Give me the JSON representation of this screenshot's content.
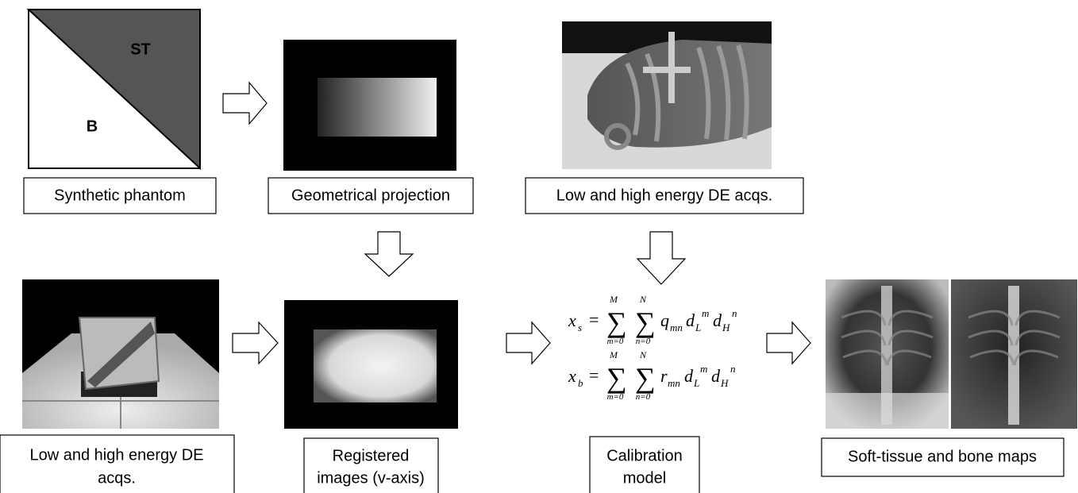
{
  "phantom": {
    "label_st": "ST",
    "label_b": "B",
    "caption": "Synthetic phantom"
  },
  "projection": {
    "caption": "Geometrical projection"
  },
  "acquisition_top": {
    "caption": "Low and high energy DE acqs."
  },
  "acquisition_bottom": {
    "caption_lines": [
      "Low and high energy DE",
      "acqs."
    ]
  },
  "registered": {
    "caption_lines": [
      "Registered",
      "images (v-axis)"
    ]
  },
  "calibration": {
    "caption_lines": [
      "Calibration",
      "model"
    ],
    "formulas": [
      {
        "lhs": "x",
        "lhs_sub": "s",
        "eq": "=",
        "sigma": "∑",
        "upper1": "M",
        "lower1": "m=0",
        "upper2": "N",
        "lower2": "n=0",
        "coef": "q",
        "coef_sub": "mn",
        "d1": "d",
        "d1_sub": "L",
        "d1_sup": "m",
        "d2": "d",
        "d2_sub": "H",
        "d2_sup": "n"
      },
      {
        "lhs": "x",
        "lhs_sub": "b",
        "eq": "=",
        "sigma": "∑",
        "upper1": "M",
        "lower1": "m=0",
        "upper2": "N",
        "lower2": "n=0",
        "coef": "r",
        "coef_sub": "mn",
        "d1": "d",
        "d1_sub": "L",
        "d1_sup": "m",
        "d2": "d",
        "d2_sub": "H",
        "d2_sup": "n"
      }
    ]
  },
  "maps": {
    "caption": "Soft-tissue and bone maps"
  }
}
